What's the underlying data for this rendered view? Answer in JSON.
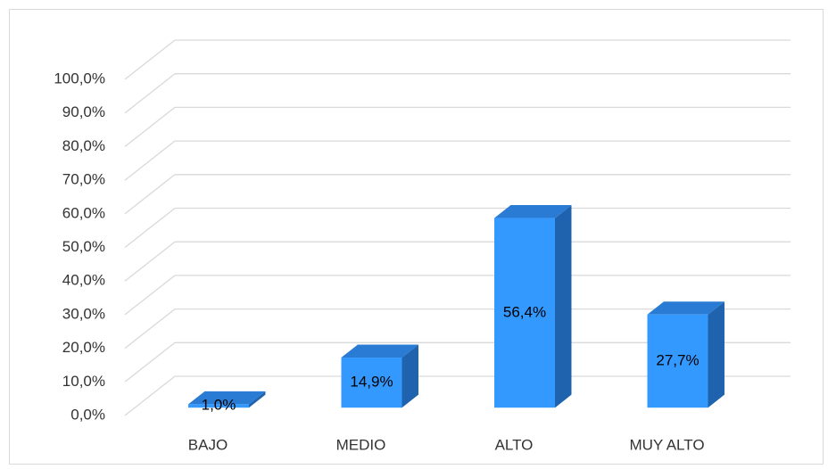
{
  "chart_data": {
    "type": "bar3d",
    "categories": [
      "BAJO",
      "MEDIO",
      "ALTO",
      "MUY ALTO"
    ],
    "values": [
      1.0,
      14.9,
      56.4,
      27.7
    ],
    "value_labels": [
      "1,0%",
      "14,9%",
      "56,4%",
      "27,7%"
    ],
    "color": "#3399ff",
    "ylim": [
      0,
      100
    ],
    "yticks": [
      {
        "value": 0,
        "label": "0,0%"
      },
      {
        "value": 10,
        "label": "10,0%"
      },
      {
        "value": 20,
        "label": "20,0%"
      },
      {
        "value": 30,
        "label": "30,0%"
      },
      {
        "value": 40,
        "label": "40,0%"
      },
      {
        "value": 50,
        "label": "50,0%"
      },
      {
        "value": 60,
        "label": "60,0%"
      },
      {
        "value": 70,
        "label": "70,0%"
      },
      {
        "value": 80,
        "label": "80,0%"
      },
      {
        "value": 90,
        "label": "90,0%"
      },
      {
        "value": 100,
        "label": "100,0%"
      }
    ],
    "grid": true
  }
}
